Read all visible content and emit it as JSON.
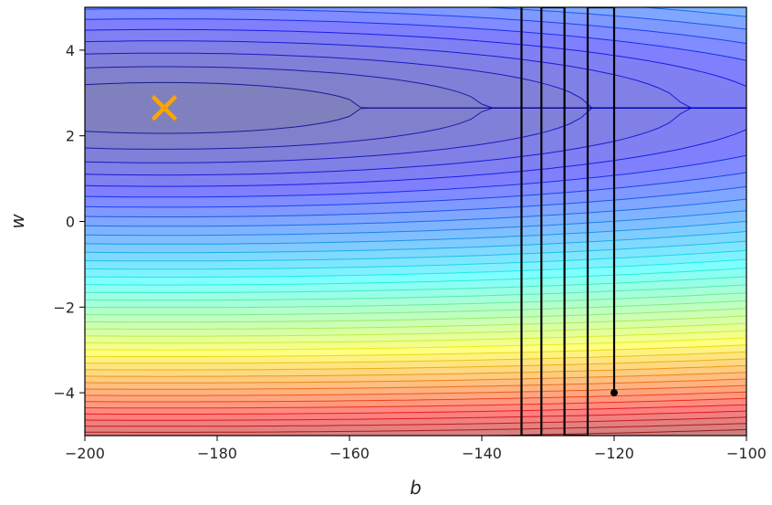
{
  "chart_data": {
    "type": "contour",
    "title": "",
    "xlabel": "b",
    "ylabel": "w",
    "xlim": [
      -200,
      -100
    ],
    "ylim": [
      -5,
      5
    ],
    "x_ticks": [
      -200,
      -180,
      -160,
      -140,
      -120,
      -100
    ],
    "y_ticks": [
      -4,
      -2,
      0,
      2,
      4
    ],
    "x_tick_labels": [
      "−200",
      "−180",
      "−160",
      "−140",
      "−120",
      "−100"
    ],
    "y_tick_labels": [
      "−4",
      "−2",
      "0",
      "2",
      "4"
    ],
    "colormap": "jet",
    "contour_levels": 40,
    "grid": false,
    "legend": "none",
    "minimum_marker": {
      "b": -188,
      "w": 2.65,
      "symbol": "x",
      "color": "#ffa500"
    },
    "descent_path": {
      "color": "#000000",
      "start": {
        "b": -120,
        "w": -4.0
      },
      "points": [
        {
          "b": -120,
          "w": -4.0
        },
        {
          "b": -120,
          "w": 5.0
        },
        {
          "b": -124,
          "w": 5.0
        },
        {
          "b": -124,
          "w": -5.0
        },
        {
          "b": -127.5,
          "w": -5.0
        },
        {
          "b": -127.5,
          "w": 5.0
        },
        {
          "b": -131,
          "w": 5.0
        },
        {
          "b": -131,
          "w": -5.0
        },
        {
          "b": -134,
          "w": -5.0
        },
        {
          "b": -134,
          "w": 5.0
        }
      ]
    }
  }
}
